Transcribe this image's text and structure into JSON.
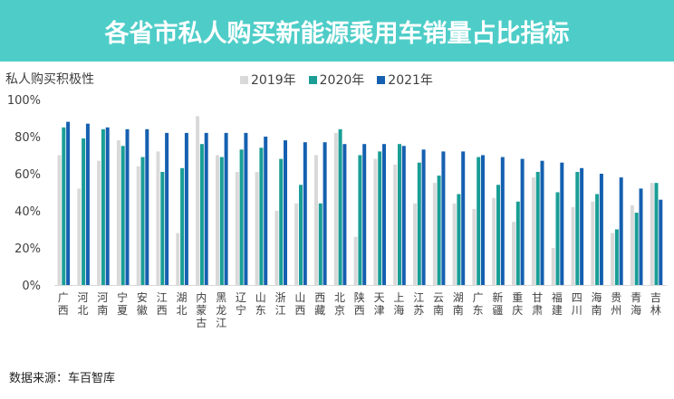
{
  "header": {
    "title": "各省市私人购买新能源乘用车销量占比指标"
  },
  "source": "数据来源：车百智库",
  "chart_data": {
    "type": "bar",
    "title": "各省市私人购买新能源乘用车销量占比指标",
    "ylabel": "私人购买积极性",
    "xlabel": "",
    "ylim": [
      0,
      100
    ],
    "yticks": [
      "0%",
      "20%",
      "40%",
      "60%",
      "80%",
      "100%"
    ],
    "legend_position": "top",
    "grid": false,
    "categories": [
      "广西",
      "河北",
      "河南",
      "宁夏",
      "安徽",
      "江西",
      "湖北",
      "内蒙古",
      "黑龙江",
      "辽宁",
      "山东",
      "浙江",
      "山西",
      "西藏",
      "北京",
      "陕西",
      "天津",
      "上海",
      "江苏",
      "云南",
      "湖南",
      "广东",
      "新疆",
      "重庆",
      "甘肃",
      "福建",
      "四川",
      "海南",
      "贵州",
      "青海",
      "吉林"
    ],
    "series": [
      {
        "name": "2019年",
        "color": "#d9d9d9",
        "values": [
          70,
          52,
          67,
          78,
          64,
          72,
          28,
          91,
          70,
          61,
          61,
          40,
          44,
          70,
          82,
          26,
          68,
          65,
          44,
          55,
          44,
          41,
          47,
          34,
          58,
          20,
          42,
          45,
          28,
          43,
          55
        ]
      },
      {
        "name": "2020年",
        "color": "#1a9e96",
        "values": [
          85,
          79,
          84,
          75,
          69,
          61,
          63,
          76,
          69,
          73,
          74,
          68,
          54,
          44,
          84,
          70,
          72,
          76,
          66,
          59,
          49,
          69,
          54,
          45,
          61,
          50,
          61,
          49,
          30,
          39,
          55
        ]
      },
      {
        "name": "2021年",
        "color": "#1560b0",
        "values": [
          88,
          87,
          85,
          84,
          84,
          82,
          82,
          82,
          82,
          82,
          80,
          78,
          77,
          77,
          76,
          76,
          76,
          75,
          73,
          72,
          72,
          70,
          69,
          68,
          67,
          66,
          63,
          60,
          58,
          52,
          46
        ]
      }
    ]
  }
}
